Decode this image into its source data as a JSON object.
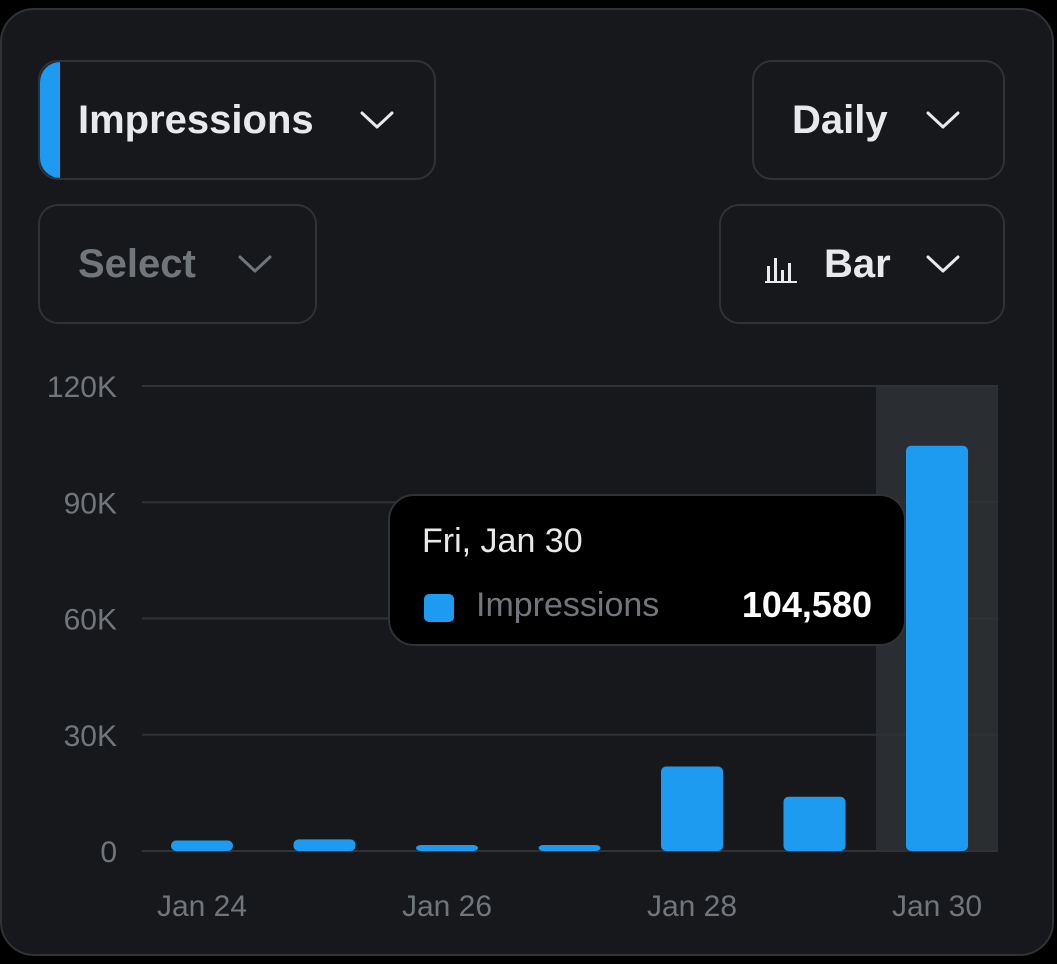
{
  "controls": {
    "metric": {
      "label": "Impressions",
      "accent_color": "#1d9bf0",
      "icon": "chevron-down-icon"
    },
    "interval": {
      "label": "Daily",
      "icon": "chevron-down-icon"
    },
    "compare": {
      "placeholder": "Select",
      "icon": "chevron-down-icon"
    },
    "chart_type": {
      "label": "Bar",
      "type_icon": "bar-chart-icon",
      "icon": "chevron-down-icon"
    }
  },
  "tooltip": {
    "date": "Fri, Jan 30",
    "series": "Impressions",
    "value": "104,580",
    "swatch_color": "#1d9bf0"
  },
  "colors": {
    "bar": "#1d9bf0",
    "grid": "#2f3336",
    "highlight": "#2a2d31",
    "background": "#17181c"
  },
  "chart_data": {
    "type": "bar",
    "categories": [
      "Jan 24",
      "Jan 25",
      "Jan 26",
      "Jan 27",
      "Jan 28",
      "Jan 29",
      "Jan 30"
    ],
    "x_tick_labels": [
      "Jan 24",
      "Jan 26",
      "Jan 28",
      "Jan 30"
    ],
    "series": [
      {
        "name": "Impressions",
        "values": [
          2700,
          3000,
          1500,
          1500,
          21800,
          14000,
          104580
        ]
      }
    ],
    "y_ticks": [
      0,
      30000,
      60000,
      90000,
      120000
    ],
    "y_tick_labels": [
      "0",
      "30K",
      "60K",
      "90K",
      "120K"
    ],
    "ylim": [
      0,
      120000
    ],
    "highlighted_category": "Jan 30",
    "grid": true
  }
}
